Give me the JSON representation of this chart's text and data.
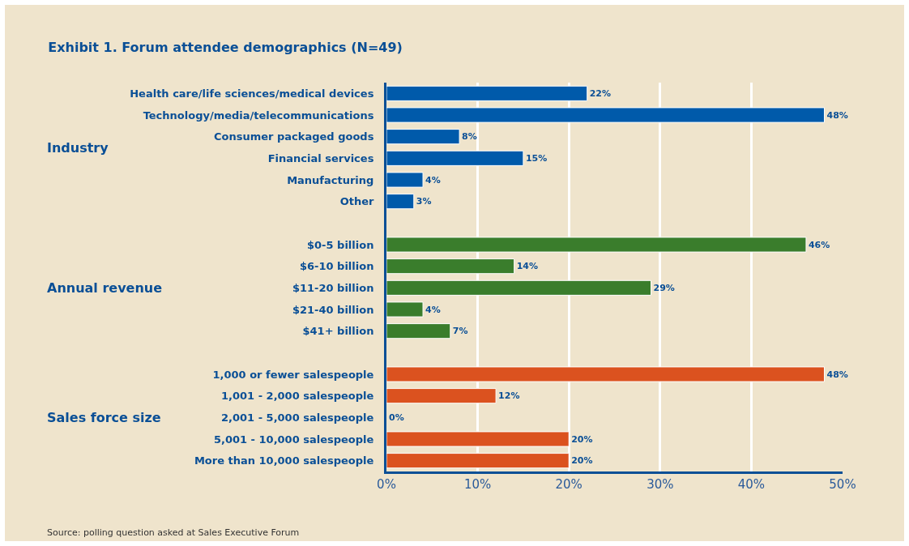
{
  "chart_data": {
    "type": "bar",
    "orientation": "horizontal",
    "title": "Exhibit 1. Forum attendee demographics (N=49)",
    "categories": [
      "Health care/life sciences/medical devices",
      "Technology/media/telecommunications",
      "Consumer packaged goods",
      "Financial services",
      "Manufacturing",
      "Other",
      null,
      "$0-5 billion",
      "$6-10 billion",
      "$11-20 billion",
      "$21-40 billion",
      "$41+ billion",
      null,
      "1,000 or fewer salespeople",
      "1,001 - 2,000 salespeople",
      "2,001 - 5,000 salespeople",
      "5,001 - 10,000 salespeople",
      "More than 10,000 salespeople"
    ],
    "values": [
      22,
      48,
      8,
      15,
      4,
      3,
      null,
      46,
      14,
      29,
      4,
      7,
      null,
      48,
      12,
      0,
      20,
      20
    ],
    "value_labels": [
      "22%",
      "48%",
      "8%",
      "15%",
      "4%",
      "3%",
      null,
      "46%",
      "14%",
      "29%",
      "4%",
      "7%",
      null,
      "48%",
      "12%",
      "0%",
      "20%",
      "20%"
    ],
    "colors": [
      "#005aaa",
      "#005aaa",
      "#005aaa",
      "#005aaa",
      "#005aaa",
      "#005aaa",
      null,
      "#3a7d2c",
      "#3a7d2c",
      "#3a7d2c",
      "#3a7d2c",
      "#3a7d2c",
      null,
      "#db521f",
      "#db521f",
      "#db521f",
      "#db521f",
      "#db521f"
    ],
    "xlim": [
      0,
      50
    ],
    "xticks": [
      {
        "value": 0,
        "label": "0%"
      },
      {
        "value": 10,
        "label": "10%"
      },
      {
        "value": 20,
        "label": "20%"
      },
      {
        "value": 30,
        "label": "30%"
      },
      {
        "value": 40,
        "label": "40%"
      },
      {
        "value": 50,
        "label": "50%"
      }
    ],
    "grid": "x",
    "annotations": [
      "Industry",
      "Annual revenue",
      "Sales force size",
      "Source: polling question asked at Sales Executive Forum"
    ]
  }
}
